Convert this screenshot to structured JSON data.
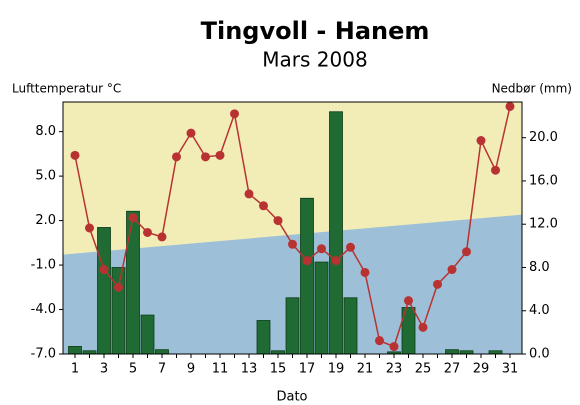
{
  "chart_data": {
    "type": "bar_line",
    "title": "Tingvoll - Hanem",
    "subtitle": "Mars 2008",
    "y_label": "Lufttemperatur °C",
    "y2_label": "Nedbør (mm)",
    "x_label": "Dato",
    "categories": [
      1,
      null,
      3,
      null,
      5,
      null,
      7,
      null,
      9,
      null,
      11,
      null,
      13,
      null,
      15,
      null,
      17,
      null,
      19,
      null,
      21,
      null,
      23,
      null,
      25,
      null,
      27,
      null,
      29,
      null,
      31
    ],
    "ylim": [
      -7,
      10
    ],
    "yticks": [
      {
        "value": -7,
        "label": "-7.0"
      },
      {
        "value": -4,
        "label": "-4.0"
      },
      {
        "value": -1,
        "label": "-1.0"
      },
      {
        "value": 2,
        "label": "2.0"
      },
      {
        "value": 5,
        "label": "5.0"
      },
      {
        "value": 8,
        "label": "8.0"
      }
    ],
    "y2lim": [
      0,
      23.3
    ],
    "y2ticks": [
      {
        "value": 0,
        "label": "0.0"
      },
      {
        "value": 4,
        "label": "4.0"
      },
      {
        "value": 8,
        "label": "8.0"
      },
      {
        "value": 12,
        "label": "12.0"
      },
      {
        "value": 16,
        "label": "16.0"
      },
      {
        "value": 20,
        "label": "20.0"
      }
    ],
    "background_split": [
      -0.3,
      2.4
    ],
    "series": [
      {
        "kind": "bar",
        "axis": "y2",
        "color": "#1f6b33",
        "values": [
          0.7,
          0.3,
          11.7,
          8.0,
          13.2,
          3.6,
          0.4,
          0,
          0,
          0,
          0,
          0,
          0,
          3.1,
          0.3,
          5.2,
          14.4,
          8.5,
          22.4,
          5.2,
          0,
          0,
          0.2,
          4.3,
          0,
          0,
          0.4,
          0.3,
          0,
          0.3,
          0
        ]
      },
      {
        "kind": "line",
        "axis": "y",
        "color": "#b83232",
        "values": [
          6.4,
          1.5,
          -1.3,
          -2.5,
          2.2,
          1.2,
          0.9,
          6.3,
          7.9,
          6.3,
          6.4,
          9.2,
          3.8,
          3.0,
          2.0,
          0.4,
          -0.7,
          0.1,
          -0.7,
          0.2,
          -1.5,
          -6.1,
          -6.5,
          -3.4,
          -5.2,
          -2.3,
          -1.3,
          -0.1,
          7.4,
          5.4,
          9.7
        ]
      }
    ]
  }
}
